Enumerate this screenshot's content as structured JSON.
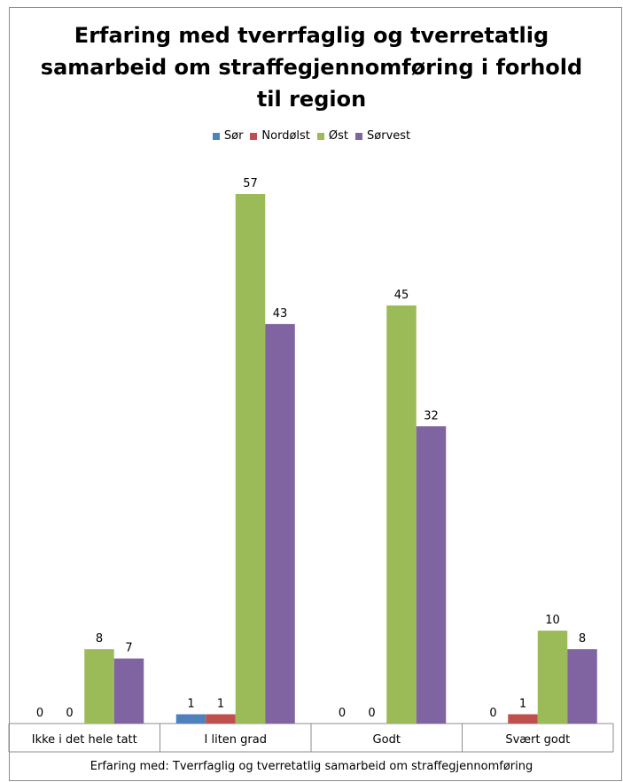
{
  "chart_data": {
    "type": "bar",
    "title": "Erfaring med tverrfaglig og tverretatlig\nsamarbeid om straffegjennomføring i forhold\ntil region",
    "xlabel": "Erfaring med: Tverrfaglig og tverretatlig samarbeid om  straffegjennomføring",
    "ylabel": "",
    "ylim": [
      0,
      57
    ],
    "grid": false,
    "legend_position": "top",
    "categories": [
      "Ikke i det hele tatt",
      "I liten grad",
      "Godt",
      "Svært godt"
    ],
    "series": [
      {
        "name": "Sør",
        "color": "#4f81bd",
        "values": [
          0,
          1,
          0,
          0
        ]
      },
      {
        "name": "Nordølst",
        "color": "#c0504d",
        "values": [
          0,
          1,
          0,
          1
        ]
      },
      {
        "name": "Øst",
        "color": "#9bbb59",
        "values": [
          8,
          57,
          45,
          10
        ]
      },
      {
        "name": "Sørvest",
        "color": "#8064a2",
        "values": [
          7,
          43,
          32,
          8
        ]
      }
    ]
  }
}
